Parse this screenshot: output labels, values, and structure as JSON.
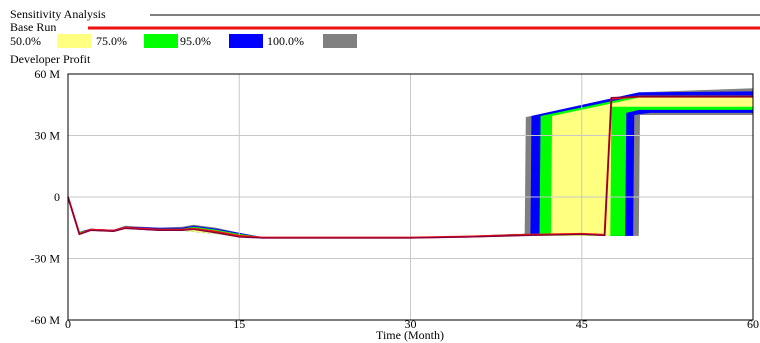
{
  "chart_data": {
    "type": "area",
    "title": "Sensitivity Analysis",
    "baseline_label": "Base Run",
    "series_label": "Developer Profit",
    "xlabel": "Time (Month)",
    "ylabel": "",
    "xlim": [
      0,
      60
    ],
    "ylim": [
      -60000000,
      60000000
    ],
    "xticks": [
      {
        "value": 0,
        "label": "0"
      },
      {
        "value": 15,
        "label": "15"
      },
      {
        "value": 30,
        "label": "30"
      },
      {
        "value": 45,
        "label": "45"
      },
      {
        "value": 60,
        "label": "60"
      }
    ],
    "yticks": [
      {
        "value": 60000000,
        "label": "60 M"
      },
      {
        "value": 30000000,
        "label": "30 M"
      },
      {
        "value": 0,
        "label": "0"
      },
      {
        "value": -30000000,
        "label": "-30 M"
      },
      {
        "value": -60000000,
        "label": "-60 M"
      }
    ],
    "grid": true,
    "legend": [
      {
        "label": "50.0%",
        "color": "#ffff80"
      },
      {
        "label": "75.0%",
        "color": "#00ff00"
      },
      {
        "label": "95.0%",
        "color": "#0000ff"
      },
      {
        "label": "100.0%",
        "color": "#808080"
      }
    ],
    "base_color": "#ee1111",
    "bands": [
      {
        "label": "100.0%",
        "color": "#808080",
        "lower": [
          [
            0,
            0
          ],
          [
            1,
            -18000000
          ],
          [
            2,
            -16500000
          ],
          [
            4,
            -17000000
          ],
          [
            5,
            -15500000
          ],
          [
            8,
            -16500000
          ],
          [
            10,
            -16500000
          ],
          [
            13,
            -18000000
          ],
          [
            15,
            -19500000
          ],
          [
            17,
            -20000000
          ],
          [
            25,
            -20000000
          ],
          [
            30,
            -20000000
          ],
          [
            35,
            -19500000
          ],
          [
            40,
            -19000000
          ],
          [
            48,
            -19000000
          ],
          [
            50,
            -19000000
          ],
          [
            50.1,
            40000000
          ],
          [
            60,
            40000000
          ]
        ],
        "upper": [
          [
            0,
            0
          ],
          [
            1,
            -17000000
          ],
          [
            2,
            -15500000
          ],
          [
            4,
            -16000000
          ],
          [
            5,
            -14000000
          ],
          [
            8,
            -15000000
          ],
          [
            10,
            -14500000
          ],
          [
            11,
            -13500000
          ],
          [
            13,
            -15000000
          ],
          [
            15,
            -17500000
          ],
          [
            17,
            -19500000
          ],
          [
            25,
            -19500000
          ],
          [
            30,
            -19500000
          ],
          [
            35,
            -19000000
          ],
          [
            39,
            -18000000
          ],
          [
            40,
            -18000000
          ],
          [
            40.1,
            39000000
          ],
          [
            50,
            51000000
          ],
          [
            60,
            53000000
          ]
        ]
      },
      {
        "label": "95.0%",
        "color": "#0000ff",
        "lower": [
          [
            0,
            0
          ],
          [
            1,
            -18000000
          ],
          [
            2,
            -16500000
          ],
          [
            4,
            -17000000
          ],
          [
            5,
            -15500000
          ],
          [
            8,
            -16500000
          ],
          [
            10,
            -16500000
          ],
          [
            13,
            -18000000
          ],
          [
            15,
            -19500000
          ],
          [
            17,
            -20000000
          ],
          [
            25,
            -20000000
          ],
          [
            30,
            -20000000
          ],
          [
            35,
            -19500000
          ],
          [
            40,
            -19000000
          ],
          [
            48,
            -19000000
          ],
          [
            49.5,
            -19000000
          ],
          [
            49.6,
            40000000
          ],
          [
            51,
            41000000
          ],
          [
            60,
            41000000
          ]
        ],
        "upper": [
          [
            0,
            0
          ],
          [
            1,
            -17000000
          ],
          [
            2,
            -15500000
          ],
          [
            4,
            -16000000
          ],
          [
            5,
            -14500000
          ],
          [
            8,
            -15000000
          ],
          [
            10,
            -15000000
          ],
          [
            11,
            -14000000
          ],
          [
            13,
            -15500000
          ],
          [
            15,
            -17500000
          ],
          [
            17,
            -19500000
          ],
          [
            25,
            -19500000
          ],
          [
            30,
            -19500000
          ],
          [
            35,
            -19000000
          ],
          [
            40,
            -18000000
          ],
          [
            40.5,
            -18000000
          ],
          [
            40.6,
            39500000
          ],
          [
            50,
            51000000
          ],
          [
            60,
            51500000
          ]
        ]
      },
      {
        "label": "75.0%",
        "color": "#00ff00",
        "lower": [
          [
            0,
            0
          ],
          [
            1,
            -18000000
          ],
          [
            2,
            -16500000
          ],
          [
            4,
            -17000000
          ],
          [
            5,
            -15500000
          ],
          [
            8,
            -16500000
          ],
          [
            10,
            -16500000
          ],
          [
            13,
            -18000000
          ],
          [
            15,
            -19500000
          ],
          [
            17,
            -20000000
          ],
          [
            25,
            -20000000
          ],
          [
            30,
            -20000000
          ],
          [
            35,
            -19500000
          ],
          [
            40,
            -19000000
          ],
          [
            48,
            -19000000
          ],
          [
            48.8,
            -19000000
          ],
          [
            48.9,
            41000000
          ],
          [
            50,
            42500000
          ],
          [
            60,
            42500000
          ]
        ],
        "upper": [
          [
            0,
            0
          ],
          [
            1,
            -17000000
          ],
          [
            2,
            -16000000
          ],
          [
            4,
            -16500000
          ],
          [
            5,
            -15000000
          ],
          [
            8,
            -15500000
          ],
          [
            10,
            -15500000
          ],
          [
            11,
            -14500000
          ],
          [
            13,
            -16000000
          ],
          [
            15,
            -18000000
          ],
          [
            17,
            -19500000
          ],
          [
            25,
            -19500000
          ],
          [
            30,
            -19500000
          ],
          [
            35,
            -19000000
          ],
          [
            40,
            -18000000
          ],
          [
            41.3,
            -18000000
          ],
          [
            41.4,
            39500000
          ],
          [
            50,
            49500000
          ],
          [
            60,
            49500000
          ]
        ]
      },
      {
        "label": "50.0%",
        "color": "#ffff80",
        "lower": [
          [
            0,
            0
          ],
          [
            1,
            -18000000
          ],
          [
            2,
            -16500000
          ],
          [
            4,
            -17000000
          ],
          [
            5,
            -15500000
          ],
          [
            8,
            -16500000
          ],
          [
            10,
            -16500000
          ],
          [
            13,
            -18000000
          ],
          [
            15,
            -19500000
          ],
          [
            17,
            -20000000
          ],
          [
            25,
            -20000000
          ],
          [
            30,
            -20000000
          ],
          [
            35,
            -19500000
          ],
          [
            40,
            -19000000
          ],
          [
            47.5,
            -19000000
          ],
          [
            47.6,
            44000000
          ],
          [
            50,
            44000000
          ],
          [
            60,
            44000000
          ]
        ],
        "upper": [
          [
            0,
            0
          ],
          [
            1,
            -17500000
          ],
          [
            2,
            -16000000
          ],
          [
            4,
            -16500000
          ],
          [
            5,
            -15000000
          ],
          [
            8,
            -16000000
          ],
          [
            10,
            -16000000
          ],
          [
            11,
            -15000000
          ],
          [
            13,
            -16500000
          ],
          [
            15,
            -18500000
          ],
          [
            17,
            -19500000
          ],
          [
            25,
            -19500000
          ],
          [
            30,
            -19500000
          ],
          [
            35,
            -19000000
          ],
          [
            40,
            -18500000
          ],
          [
            42.3,
            -18500000
          ],
          [
            42.4,
            39500000
          ],
          [
            50,
            48500000
          ],
          [
            60,
            48500000
          ]
        ]
      }
    ],
    "base_run": {
      "label": "Base Run",
      "color": "#ee1111",
      "points": [
        [
          0,
          0
        ],
        [
          1,
          -18000000
        ],
        [
          2,
          -16000000
        ],
        [
          4,
          -16500000
        ],
        [
          5,
          -15000000
        ],
        [
          8,
          -16000000
        ],
        [
          10,
          -16000000
        ],
        [
          11,
          -15500000
        ],
        [
          13,
          -17000000
        ],
        [
          15,
          -19000000
        ],
        [
          17,
          -19800000
        ],
        [
          25,
          -19800000
        ],
        [
          30,
          -19800000
        ],
        [
          35,
          -19300000
        ],
        [
          40,
          -18500000
        ],
        [
          45,
          -18000000
        ],
        [
          47,
          -18500000
        ],
        [
          47.6,
          48000000
        ],
        [
          50,
          49000000
        ],
        [
          60,
          49000000
        ]
      ]
    },
    "mean_line": {
      "color": "#800040",
      "points": [
        [
          0,
          0
        ],
        [
          1,
          -18200000
        ],
        [
          2,
          -16300000
        ],
        [
          4,
          -16800000
        ],
        [
          5,
          -15300000
        ],
        [
          8,
          -16300000
        ],
        [
          10,
          -16300000
        ],
        [
          11,
          -15800000
        ],
        [
          13,
          -17500000
        ],
        [
          15,
          -19500000
        ],
        [
          17,
          -20000000
        ],
        [
          25,
          -20000000
        ],
        [
          30,
          -20000000
        ],
        [
          35,
          -19500000
        ],
        [
          40,
          -18800000
        ],
        [
          45,
          -18200000
        ],
        [
          47,
          -18800000
        ],
        [
          47.6,
          48500000
        ],
        [
          50,
          49000000
        ],
        [
          60,
          49000000
        ]
      ]
    }
  }
}
